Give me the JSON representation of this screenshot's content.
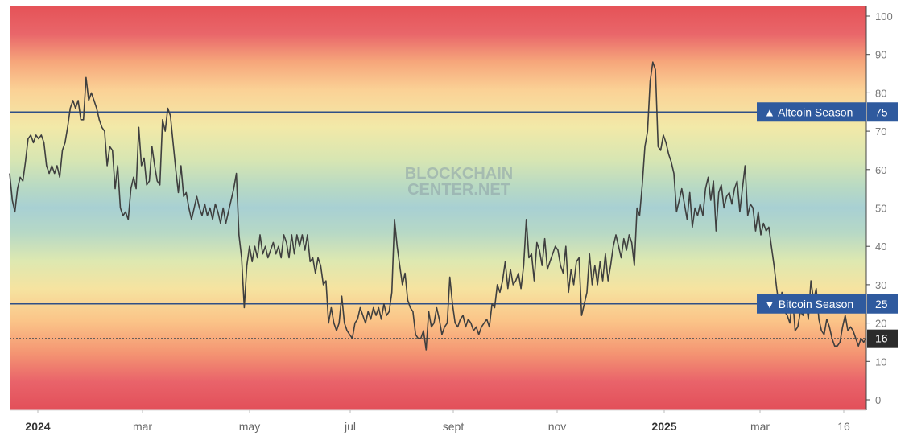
{
  "chart_data": {
    "type": "line",
    "watermark": [
      "BLOCKCHAIN",
      "CENTER.NET"
    ],
    "x_ticks": [
      {
        "label": "2024",
        "bold": true
      },
      {
        "label": "mar",
        "bold": false
      },
      {
        "label": "may",
        "bold": false
      },
      {
        "label": "jul",
        "bold": false
      },
      {
        "label": "sept",
        "bold": false
      },
      {
        "label": "nov",
        "bold": false
      },
      {
        "label": "2025",
        "bold": true
      },
      {
        "label": "mar",
        "bold": false
      },
      {
        "label": "16",
        "bold": false
      }
    ],
    "y_ticks": [
      "0",
      "10",
      "20",
      "30",
      "40",
      "50",
      "60",
      "70",
      "80",
      "90",
      "100"
    ],
    "ylim": [
      0,
      100
    ],
    "thresholds": [
      {
        "value": 75,
        "label": "▲ Altcoin Season",
        "value_label": "75"
      },
      {
        "value": 25,
        "label": "▼ Bitcoin Season",
        "value_label": "25"
      }
    ],
    "current": {
      "value": 16,
      "label": "16"
    },
    "series": [
      {
        "values": [
          59,
          52,
          49,
          55,
          58,
          57,
          62,
          68,
          69,
          67,
          69,
          68,
          69,
          67,
          61,
          59,
          61,
          59,
          61,
          58,
          65,
          67,
          71,
          76,
          78,
          76,
          78,
          73,
          73,
          84,
          78,
          80,
          78,
          76,
          73,
          71,
          70,
          61,
          66,
          65,
          55,
          61,
          50,
          48,
          49,
          47,
          55,
          58,
          55,
          71,
          61,
          63,
          56,
          57,
          66,
          61,
          57,
          56,
          73,
          70,
          76,
          74,
          67,
          60,
          54,
          61,
          53,
          54,
          50,
          47,
          50,
          53,
          50,
          48,
          51,
          48,
          50,
          47,
          51,
          49,
          46,
          50,
          46,
          49,
          52,
          55,
          59,
          43,
          37,
          24,
          35,
          40,
          36,
          40,
          37,
          43,
          38,
          40,
          37,
          39,
          41,
          38,
          40,
          37,
          43,
          41,
          37,
          43,
          38,
          43,
          40,
          43,
          39,
          43,
          36,
          37,
          33,
          37,
          35,
          30,
          31,
          20,
          24,
          20,
          18,
          20,
          27,
          20,
          18,
          17,
          16,
          20,
          21,
          24,
          22,
          20,
          23,
          21,
          24,
          22,
          24,
          21,
          25,
          22,
          23,
          28,
          47,
          40,
          35,
          30,
          33,
          26,
          24,
          23,
          17,
          16,
          16,
          18,
          13,
          23,
          19,
          20,
          24,
          21,
          17,
          19,
          20,
          32,
          25,
          20,
          19,
          21,
          22,
          19,
          21,
          20,
          18,
          19,
          17,
          19,
          20,
          21,
          19,
          25,
          24,
          30,
          28,
          31,
          36,
          29,
          34,
          30,
          31,
          33,
          29,
          35,
          47,
          37,
          38,
          31,
          41,
          39,
          35,
          42,
          34,
          36,
          38,
          40,
          39,
          35,
          33,
          40,
          28,
          34,
          30,
          36,
          37,
          22,
          25,
          28,
          38,
          30,
          35,
          30,
          36,
          31,
          38,
          31,
          35,
          40,
          43,
          40,
          37,
          42,
          39,
          43,
          41,
          35,
          50,
          48,
          56,
          66,
          70,
          83,
          88,
          86,
          66,
          65,
          69,
          67,
          64,
          62,
          59,
          49,
          52,
          55,
          51,
          47,
          54,
          45,
          50,
          48,
          51,
          48,
          55,
          58,
          52,
          57,
          44,
          54,
          56,
          50,
          53,
          54,
          51,
          55,
          57,
          49,
          55,
          61,
          48,
          51,
          50,
          44,
          49,
          43,
          46,
          44,
          45,
          40,
          35,
          29,
          24,
          28,
          23,
          22,
          20,
          27,
          18,
          19,
          23,
          22,
          26,
          21,
          31,
          26,
          29,
          21,
          18,
          17,
          21,
          19,
          16,
          14,
          14,
          15,
          19,
          22,
          18,
          19,
          18,
          16,
          14,
          16,
          15,
          16
        ]
      }
    ]
  }
}
